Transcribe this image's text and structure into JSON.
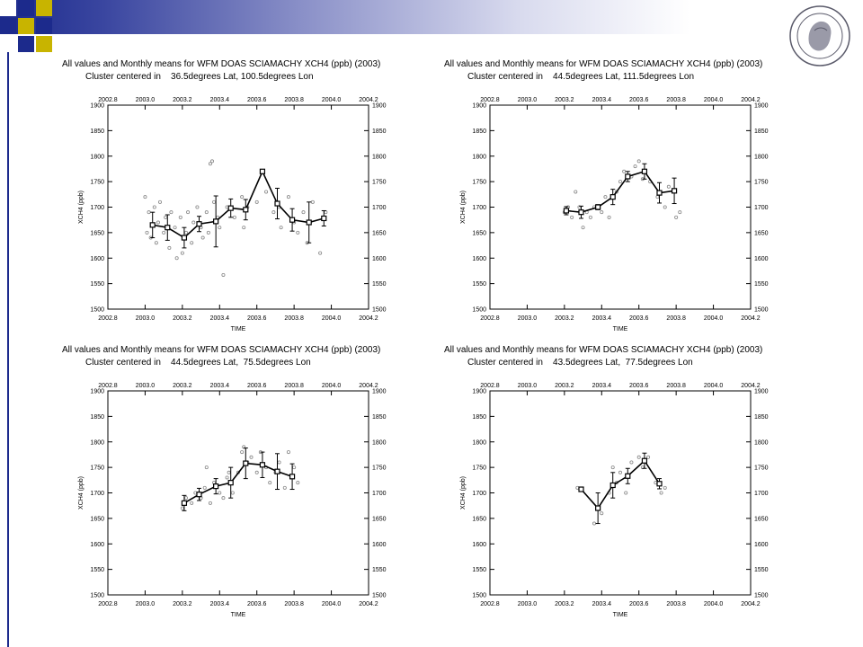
{
  "theme": {
    "accent": "#1c2a8c",
    "accent_light": "#c8cce6",
    "square_yellow": "#c8b400",
    "square_navy": "#1c2a8c"
  },
  "logo": {
    "name": "university-seal"
  },
  "chart_data": [
    {
      "type": "line",
      "title": "All values and Monthly means for WFM DOAS SCIAMACHY XCH4 (ppb) (2003)",
      "subtitle": "Cluster centered in    36.5degrees Lat, 100.5degrees Lon",
      "xlabel": "TIME",
      "ylabel": "XCH4 (ppb)",
      "xlim": [
        2002.8,
        2004.2
      ],
      "ylim": [
        1500,
        1900
      ],
      "xticks": [
        "2002.8",
        "2003.0",
        "2003.2",
        "2003.4",
        "2003.6",
        "2003.8",
        "2004.0",
        "2004.2"
      ],
      "yticks": [
        "1500",
        "1550",
        "1600",
        "1650",
        "1700",
        "1750",
        "1800",
        "1850",
        "1900"
      ],
      "means": {
        "x": [
          2003.04,
          2003.12,
          2003.21,
          2003.29,
          2003.38,
          2003.46,
          2003.54,
          2003.63,
          2003.71,
          2003.79,
          2003.88,
          2003.96
        ],
        "y": [
          1665,
          1660,
          1640,
          1667,
          1672,
          1698,
          1695,
          1770,
          1707,
          1675,
          1670,
          1678
        ],
        "err": [
          25,
          25,
          20,
          15,
          50,
          18,
          20,
          0,
          30,
          22,
          40,
          15
        ]
      },
      "scatter": {
        "x": [
          2003.0,
          2003.01,
          2003.02,
          2003.03,
          2003.05,
          2003.06,
          2003.07,
          2003.08,
          2003.1,
          2003.11,
          2003.13,
          2003.14,
          2003.16,
          2003.17,
          2003.19,
          2003.2,
          2003.22,
          2003.23,
          2003.25,
          2003.26,
          2003.28,
          2003.3,
          2003.31,
          2003.33,
          2003.34,
          2003.35,
          2003.36,
          2003.37,
          2003.39,
          2003.4,
          2003.42,
          2003.44,
          2003.48,
          2003.52,
          2003.53,
          2003.55,
          2003.6,
          2003.65,
          2003.69,
          2003.72,
          2003.73,
          2003.77,
          2003.8,
          2003.82,
          2003.85,
          2003.87,
          2003.9,
          2003.94,
          2003.97
        ],
        "y": [
          1720,
          1650,
          1690,
          1640,
          1700,
          1630,
          1670,
          1710,
          1650,
          1680,
          1620,
          1690,
          1660,
          1600,
          1680,
          1610,
          1650,
          1690,
          1630,
          1670,
          1700,
          1660,
          1640,
          1690,
          1650,
          1785,
          1790,
          1710,
          1680,
          1660,
          1567,
          1700,
          1680,
          1720,
          1660,
          1700,
          1710,
          1730,
          1690,
          1700,
          1660,
          1720,
          1670,
          1650,
          1690,
          1630,
          1710,
          1610,
          1690
        ]
      }
    },
    {
      "type": "line",
      "title": "All values and Monthly means for WFM DOAS SCIAMACHY XCH4 (ppb) (2003)",
      "subtitle": "Cluster centered in    44.5degrees Lat, 111.5degrees Lon",
      "xlabel": "TIME",
      "ylabel": "XCH4 (ppb)",
      "xlim": [
        2002.8,
        2004.2
      ],
      "ylim": [
        1500,
        1900
      ],
      "xticks": [
        "2002.8",
        "2003.0",
        "2003.2",
        "2003.4",
        "2003.6",
        "2003.8",
        "2004.0",
        "2004.2"
      ],
      "yticks": [
        "1500",
        "1550",
        "1600",
        "1650",
        "1700",
        "1750",
        "1800",
        "1850",
        "1900"
      ],
      "means": {
        "x": [
          2003.21,
          2003.29,
          2003.38,
          2003.46,
          2003.54,
          2003.63,
          2003.71,
          2003.79
        ],
        "y": [
          1693,
          1690,
          1700,
          1720,
          1760,
          1770,
          1728,
          1732
        ],
        "err": [
          8,
          12,
          5,
          15,
          10,
          15,
          20,
          25
        ]
      },
      "scatter": {
        "x": [
          2003.2,
          2003.22,
          2003.24,
          2003.26,
          2003.28,
          2003.3,
          2003.32,
          2003.34,
          2003.36,
          2003.4,
          2003.42,
          2003.44,
          2003.48,
          2003.5,
          2003.52,
          2003.56,
          2003.58,
          2003.6,
          2003.62,
          2003.66,
          2003.7,
          2003.74,
          2003.76,
          2003.8,
          2003.82
        ],
        "y": [
          1690,
          1700,
          1680,
          1730,
          1700,
          1660,
          1690,
          1680,
          1700,
          1690,
          1720,
          1680,
          1730,
          1750,
          1770,
          1760,
          1780,
          1790,
          1755,
          1750,
          1720,
          1700,
          1740,
          1680,
          1690
        ]
      }
    },
    {
      "type": "line",
      "title": "All values and Monthly means for WFM DOAS SCIAMACHY XCH4 (ppb) (2003)",
      "subtitle": "Cluster centered in    44.5degrees Lat,  75.5degrees Lon",
      "xlabel": "TIME",
      "ylabel": "XCH4 (ppb)",
      "xlim": [
        2002.8,
        2004.2
      ],
      "ylim": [
        1500,
        1900
      ],
      "xticks": [
        "2002.8",
        "2003.0",
        "2003.2",
        "2003.4",
        "2003.6",
        "2003.8",
        "2004.0",
        "2004.2"
      ],
      "yticks": [
        "1500",
        "1550",
        "1600",
        "1650",
        "1700",
        "1750",
        "1800",
        "1850",
        "1900"
      ],
      "means": {
        "x": [
          2003.21,
          2003.29,
          2003.38,
          2003.46,
          2003.54,
          2003.63,
          2003.71,
          2003.79
        ],
        "y": [
          1680,
          1697,
          1713,
          1720,
          1758,
          1755,
          1742,
          1732
        ],
        "err": [
          15,
          12,
          15,
          30,
          30,
          25,
          35,
          25
        ]
      },
      "scatter": {
        "x": [
          2003.2,
          2003.22,
          2003.25,
          2003.27,
          2003.3,
          2003.32,
          2003.33,
          2003.35,
          2003.37,
          2003.4,
          2003.42,
          2003.44,
          2003.45,
          2003.47,
          2003.5,
          2003.52,
          2003.53,
          2003.55,
          2003.57,
          2003.6,
          2003.62,
          2003.65,
          2003.67,
          2003.7,
          2003.72,
          2003.75,
          2003.77,
          2003.8,
          2003.82
        ],
        "y": [
          1670,
          1690,
          1680,
          1700,
          1690,
          1710,
          1750,
          1680,
          1720,
          1700,
          1690,
          1730,
          1740,
          1700,
          1740,
          1780,
          1790,
          1760,
          1770,
          1740,
          1780,
          1750,
          1720,
          1740,
          1760,
          1710,
          1780,
          1750,
          1720
        ]
      }
    },
    {
      "type": "line",
      "title": "All values and Monthly means for WFM DOAS SCIAMACHY XCH4 (ppb) (2003)",
      "subtitle": "Cluster centered in    43.5degrees Lat,  77.5degrees Lon",
      "xlabel": "TIME",
      "ylabel": "XCH4 (ppb)",
      "xlim": [
        2002.8,
        2004.2
      ],
      "ylim": [
        1500,
        1900
      ],
      "xticks": [
        "2002.8",
        "2003.0",
        "2003.2",
        "2003.4",
        "2003.6",
        "2003.8",
        "2004.0",
        "2004.2"
      ],
      "yticks": [
        "1500",
        "1550",
        "1600",
        "1650",
        "1700",
        "1750",
        "1800",
        "1850",
        "1900"
      ],
      "means": {
        "x": [
          2003.29,
          2003.38,
          2003.46,
          2003.54,
          2003.63,
          2003.71
        ],
        "y": [
          1707,
          1670,
          1715,
          1733,
          1763,
          1718
        ],
        "err": [
          3,
          30,
          25,
          15,
          15,
          10
        ]
      },
      "scatter": {
        "x": [
          2003.27,
          2003.36,
          2003.38,
          2003.4,
          2003.44,
          2003.46,
          2003.48,
          2003.5,
          2003.53,
          2003.56,
          2003.6,
          2003.62,
          2003.65,
          2003.69,
          2003.72,
          2003.74
        ],
        "y": [
          1710,
          1640,
          1670,
          1660,
          1700,
          1750,
          1720,
          1740,
          1700,
          1760,
          1770,
          1750,
          1770,
          1720,
          1700,
          1710
        ]
      }
    }
  ]
}
